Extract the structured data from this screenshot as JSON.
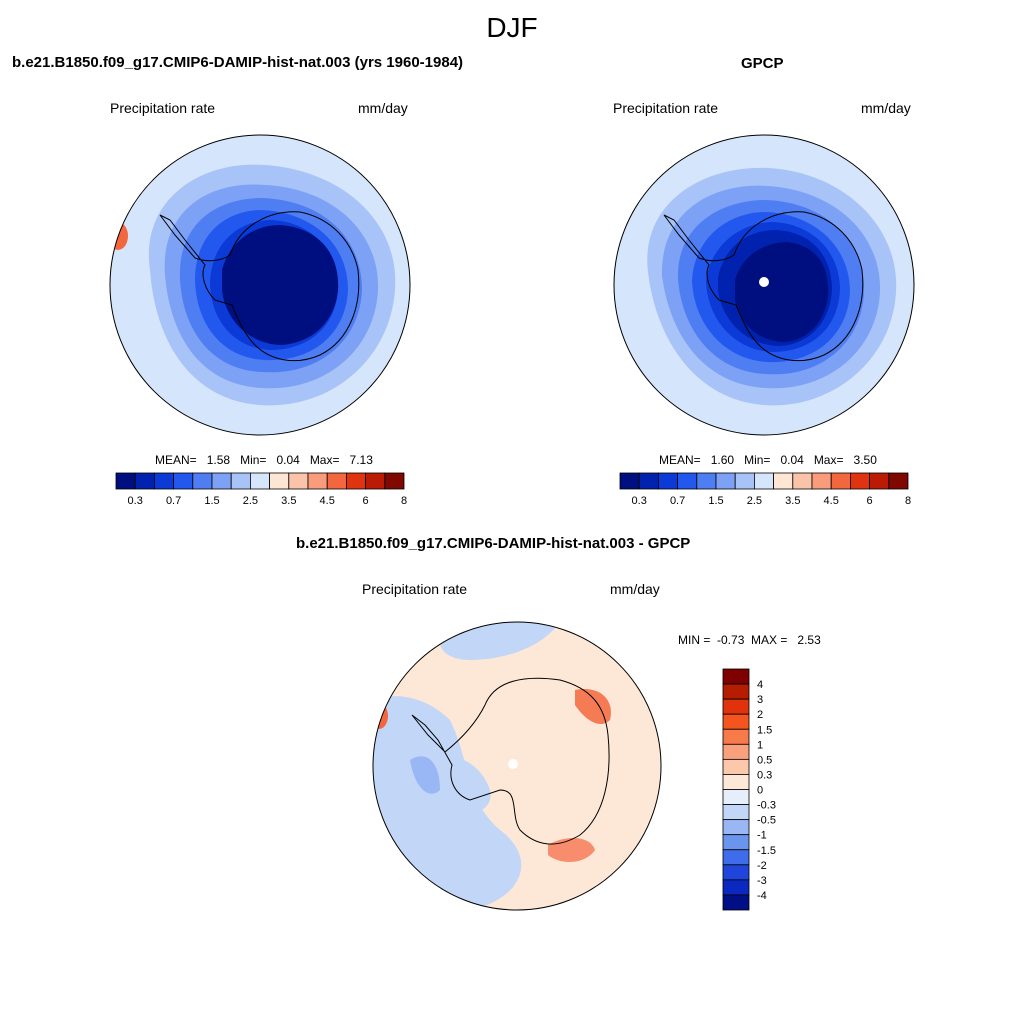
{
  "season": "DJF",
  "panels": [
    {
      "title": "b.e21.B1850.f09_g17.CMIP6-DAMIP-hist-nat.003 (yrs 1960-1984)",
      "variable": "Precipitation rate",
      "units": "mm/day",
      "stats": {
        "mean_label": "MEAN=",
        "mean": "1.58",
        "min_label": "Min=",
        "min": "0.04",
        "max_label": "Max=",
        "max": "7.13"
      }
    },
    {
      "title": "GPCP",
      "variable": "Precipitation rate",
      "units": "mm/day",
      "stats": {
        "mean_label": "MEAN=",
        "mean": "1.60",
        "min_label": "Min=",
        "min": "0.04",
        "max_label": "Max=",
        "max": "3.50"
      }
    },
    {
      "title": "b.e21.B1850.f09_g17.CMIP6-DAMIP-hist-nat.003 - GPCP",
      "variable": "Precipitation rate",
      "units": "mm/day",
      "stats": {
        "min_label": "MIN =",
        "min": "-0.73",
        "max_label": "MAX =",
        "max": "2.53"
      }
    }
  ],
  "abs_colorbar": {
    "colors": [
      "#000f80",
      "#0022ae",
      "#0b3ad6",
      "#2358ee",
      "#4f7ef2",
      "#7da1f5",
      "#a8c3f7",
      "#d5e5fb",
      "#fde6d4",
      "#fbc4aa",
      "#f89c7c",
      "#f3673e",
      "#e0330f",
      "#bb1a04",
      "#7f0800"
    ],
    "labels": [
      "0.3",
      "0.7",
      "1.5",
      "2.5",
      "3.5",
      "4.5",
      "6",
      "8"
    ]
  },
  "diff_colorbar": {
    "colors": [
      "#7f0000",
      "#b51c00",
      "#e0330c",
      "#f4551f",
      "#f77a4a",
      "#f9a07c",
      "#fbc8ab",
      "#fde8d8",
      "#e6eefb",
      "#c2d6f8",
      "#98b7f4",
      "#6a94ee",
      "#3f6ce8",
      "#1f45dd",
      "#0b29c1",
      "#000f85"
    ],
    "labels": [
      "4",
      "3",
      "2",
      "1.5",
      "1",
      "0.5",
      "0.3",
      "0",
      "-0.3",
      "-0.5",
      "-1",
      "-1.5",
      "-2",
      "-3",
      "-4"
    ]
  },
  "map_colors": {
    "ocean_light": "#d5e5fb",
    "ring1": "#a8c3f7",
    "ring2": "#7da1f5",
    "ring3": "#4f7ef2",
    "ring4": "#2358ee",
    "ring5": "#0b3ad6",
    "ring6": "#0022ae",
    "core": "#000f80",
    "warm": "#f3673e",
    "diff_bg": "#fde8d8",
    "diff_blue": "#c2d6f8",
    "diff_blue2": "#98b7f4"
  }
}
